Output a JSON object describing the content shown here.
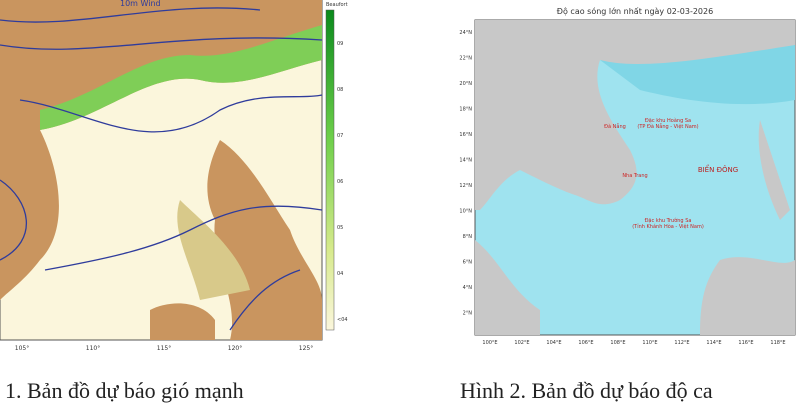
{
  "figures": [
    {
      "map_title": "10m Wind",
      "legend_title": "Beaufort",
      "legend_ticks": [
        "09",
        "08",
        "07",
        "06",
        "05",
        "04",
        "<04"
      ],
      "x_labels": [
        "105°",
        "110°",
        "115°",
        "120°",
        "125°"
      ],
      "caption": "1. Bản đồ dự báo gió mạnh"
    },
    {
      "map_title": "Độ cao sóng lớn nhất ngày 02-03-2026",
      "y_labels": [
        "24°N",
        "22°N",
        "20°N",
        "18°N",
        "16°N",
        "14°N",
        "12°N",
        "10°N",
        "8°N",
        "6°N",
        "4°N",
        "2°N"
      ],
      "x_labels": [
        "100°E",
        "102°E",
        "104°E",
        "106°E",
        "108°E",
        "110°E",
        "112°E",
        "114°E",
        "116°E",
        "118°E"
      ],
      "places": [
        "Đặc khu Hoàng Sa",
        "(TP Đà Nẵng - Việt Nam)",
        "Đà Nẵng",
        "BIỂN ĐÔNG",
        "Nha Trang",
        "Đặc khu Trường Sa",
        "(Tỉnh Khánh Hòa - Việt Nam)"
      ],
      "caption": "Hình 2. Bản đồ dự báo độ ca"
    }
  ]
}
